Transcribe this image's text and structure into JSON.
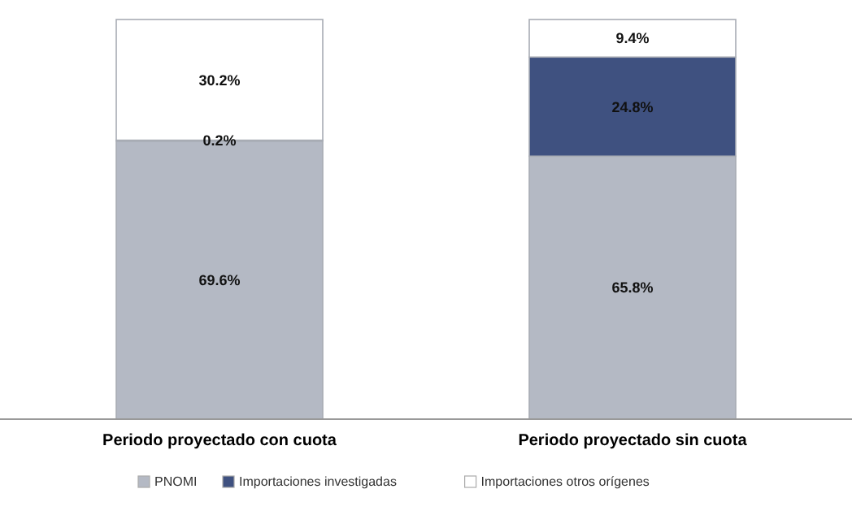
{
  "chart_data": {
    "type": "bar",
    "stacked": true,
    "categories": [
      "Periodo proyectado con cuota",
      "Periodo proyectado sin cuota"
    ],
    "series": [
      {
        "name": "PNOMI",
        "color": "#b4b9c4",
        "values": [
          69.6,
          65.8
        ],
        "value_labels": [
          "69.6%",
          "65.8%"
        ]
      },
      {
        "name": "Importaciones  investigadas",
        "color": "#3f5180",
        "values": [
          0.2,
          24.8
        ],
        "value_labels": [
          "0.2%",
          "24.8%"
        ]
      },
      {
        "name": "Importaciones otros orígenes",
        "color": "#ffffff",
        "values": [
          30.2,
          9.4
        ],
        "value_labels": [
          "30.2%",
          "9.4%"
        ]
      }
    ],
    "legend": "bottom",
    "tick_labels": "x"
  }
}
